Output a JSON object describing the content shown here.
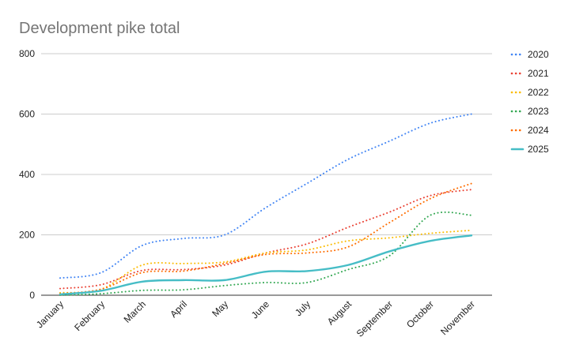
{
  "chart_data": {
    "type": "line",
    "title": "Development pike total",
    "xlabel": "",
    "ylabel": "",
    "categories": [
      "January",
      "February",
      "March",
      "April",
      "May",
      "June",
      "July",
      "August",
      "September",
      "October",
      "November"
    ],
    "ylim": [
      0,
      800
    ],
    "yticks": [
      "0",
      "200",
      "400",
      "600",
      "800"
    ],
    "grid": true,
    "legend_position": "right",
    "series": [
      {
        "name": "2020",
        "color": "#4285f4",
        "style": "dotted",
        "values": [
          57,
          75,
          165,
          188,
          200,
          290,
          370,
          450,
          510,
          570,
          600
        ]
      },
      {
        "name": "2021",
        "color": "#ea4335",
        "style": "dotted",
        "values": [
          22,
          35,
          82,
          85,
          100,
          140,
          170,
          225,
          275,
          330,
          350
        ]
      },
      {
        "name": "2022",
        "color": "#fbbc04",
        "style": "dotted",
        "values": [
          8,
          20,
          100,
          105,
          110,
          140,
          150,
          180,
          190,
          205,
          215
        ]
      },
      {
        "name": "2023",
        "color": "#34a853",
        "style": "dotted",
        "values": [
          0,
          5,
          16,
          18,
          32,
          42,
          42,
          85,
          130,
          265,
          265
        ]
      },
      {
        "name": "2024",
        "color": "#ff6d01",
        "style": "dotted",
        "values": [
          5,
          20,
          75,
          80,
          105,
          135,
          140,
          160,
          240,
          320,
          370
        ]
      },
      {
        "name": "2025",
        "color": "#46bdc6",
        "style": "solid",
        "values": [
          3,
          15,
          45,
          50,
          50,
          78,
          80,
          100,
          145,
          180,
          198
        ]
      }
    ]
  }
}
